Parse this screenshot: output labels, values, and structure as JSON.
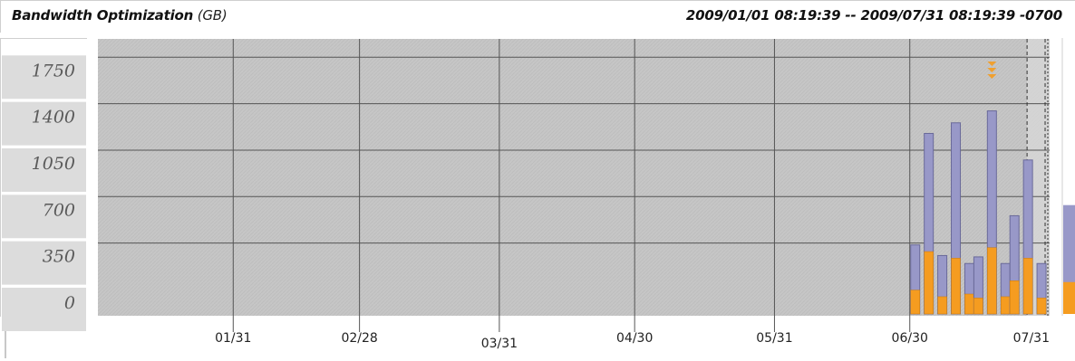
{
  "header": {
    "title": "Bandwidth Optimization",
    "unit": "(GB)",
    "range": "2009/01/01 08:19:39 -- 2009/07/31 08:19:39 -0700"
  },
  "colors": {
    "plot_bg": "#c6c6c6",
    "recent_bg": "#d8d8d8",
    "series_total": "#9898c8",
    "series_reduced": "#f59c20",
    "marker": "#f0a030"
  },
  "chart_data": {
    "type": "bar",
    "x_range": [
      "2009-01-01",
      "2009-07-31"
    ],
    "ylim": [
      0,
      2000
    ],
    "y_ticks": [
      "1750",
      "1400",
      "1050",
      "700",
      "350",
      "0"
    ],
    "y_tick_values": [
      1750,
      1400,
      1050,
      700,
      350,
      0
    ],
    "x_ticks": [
      "01/31",
      "02/28",
      "03/31",
      "04/30",
      "05/31",
      "06/30",
      "07/31"
    ],
    "x_tick_dates": [
      "2009-01-31",
      "2009-02-28",
      "2009-03-31",
      "2009-04-30",
      "2009-05-31",
      "2009-06-30",
      "2009-07-31"
    ],
    "grid": true,
    "bars": [
      {
        "date": "2009-06-30",
        "total": 520,
        "reduced": 180
      },
      {
        "date": "2009-07-03",
        "total": 1360,
        "reduced": 470
      },
      {
        "date": "2009-07-06",
        "total": 440,
        "reduced": 130
      },
      {
        "date": "2009-07-09",
        "total": 1440,
        "reduced": 420
      },
      {
        "date": "2009-07-12",
        "total": 380,
        "reduced": 150
      },
      {
        "date": "2009-07-14",
        "total": 430,
        "reduced": 120
      },
      {
        "date": "2009-07-17",
        "total": 1530,
        "reduced": 500
      },
      {
        "date": "2009-07-20",
        "total": 380,
        "reduced": 130
      },
      {
        "date": "2009-07-22",
        "total": 740,
        "reduced": 250
      },
      {
        "date": "2009-07-25",
        "total": 1160,
        "reduced": 420
      },
      {
        "date": "2009-07-28",
        "total": 380,
        "reduced": 120
      }
    ],
    "marker_date": "2009-07-17",
    "dashed_lines": [
      "2009-07-26",
      "2009-07-30"
    ],
    "shaded_start": "2009-07-26",
    "side_bar": {
      "total": 820,
      "reduced": 240
    }
  }
}
